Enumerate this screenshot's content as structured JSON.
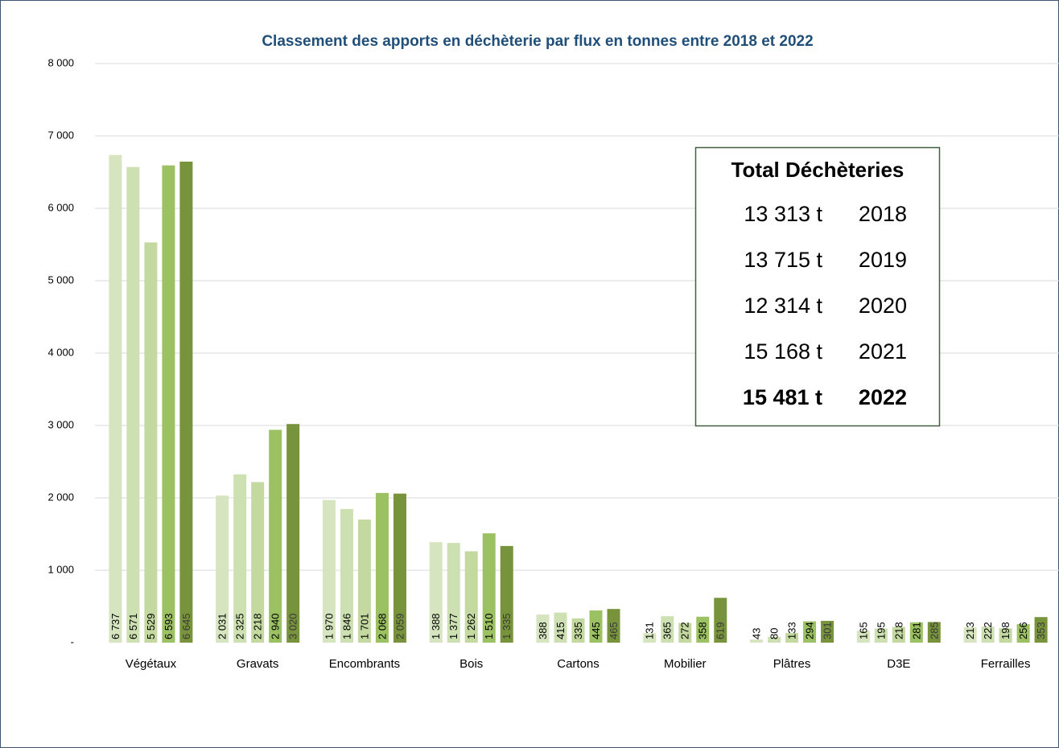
{
  "chart_data": {
    "type": "bar",
    "title": "Classement des apports en déchèterie par flux en tonnes entre 2018 et 2022",
    "categories": [
      "Végétaux",
      "Gravats",
      "Encombrants",
      "Bois",
      "Cartons",
      "Mobilier",
      "Plâtres",
      "D3E",
      "Ferrailles"
    ],
    "series": [
      {
        "color": "#d6e5bf",
        "values": [
          6737,
          2031,
          1970,
          1388,
          388,
          131,
          43,
          165,
          213
        ],
        "value_labels": [
          "6 737",
          "2 031",
          "1 970",
          "1 388",
          "388",
          "131",
          "43",
          "165",
          "213"
        ]
      },
      {
        "color": "#cde0b2",
        "values": [
          6571,
          2325,
          1846,
          1377,
          415,
          365,
          80,
          195,
          222
        ],
        "value_labels": [
          "6 571",
          "2 325",
          "1 846",
          "1 377",
          "415",
          "365",
          "80",
          "195",
          "222"
        ]
      },
      {
        "color": "#c3d9a0",
        "values": [
          5529,
          2218,
          1701,
          1262,
          335,
          272,
          133,
          218,
          198
        ],
        "value_labels": [
          "5 529",
          "2 218",
          "1 701",
          "1 262",
          "335",
          "272",
          "133",
          "218",
          "198"
        ]
      },
      {
        "color": "#9cc163",
        "values": [
          6593,
          2940,
          2068,
          1510,
          445,
          358,
          294,
          281,
          256
        ],
        "value_labels": [
          "6 593",
          "2 940",
          "2 068",
          "1 510",
          "445",
          "358",
          "294",
          "281",
          "256"
        ]
      },
      {
        "color": "#77933c",
        "values": [
          6645,
          3020,
          2059,
          1335,
          465,
          619,
          301,
          285,
          353
        ],
        "value_labels": [
          "6 645",
          "3 020",
          "2 059",
          "1 335",
          "465",
          "619",
          "301",
          "285",
          "353"
        ]
      }
    ],
    "ylim": [
      0,
      8000
    ],
    "yticks": [
      {
        "value": 0,
        "label": "-"
      },
      {
        "value": 1000,
        "label": "1 000"
      },
      {
        "value": 2000,
        "label": "2 000"
      },
      {
        "value": 3000,
        "label": "3 000"
      },
      {
        "value": 4000,
        "label": "4 000"
      },
      {
        "value": 5000,
        "label": "5 000"
      },
      {
        "value": 6000,
        "label": "6 000"
      },
      {
        "value": 7000,
        "label": "7 000"
      },
      {
        "value": 8000,
        "label": "8 000"
      }
    ],
    "grid": true,
    "total_box": {
      "title": "Total Déchèteries",
      "rows": [
        {
          "total": "13 313 t",
          "year": "2018"
        },
        {
          "total": "13 715 t",
          "year": "2019"
        },
        {
          "total": "12 314 t",
          "year": "2020"
        },
        {
          "total": "15 168 t",
          "year": "2021"
        },
        {
          "total": "15 481 t",
          "year": "2022"
        }
      ]
    }
  }
}
